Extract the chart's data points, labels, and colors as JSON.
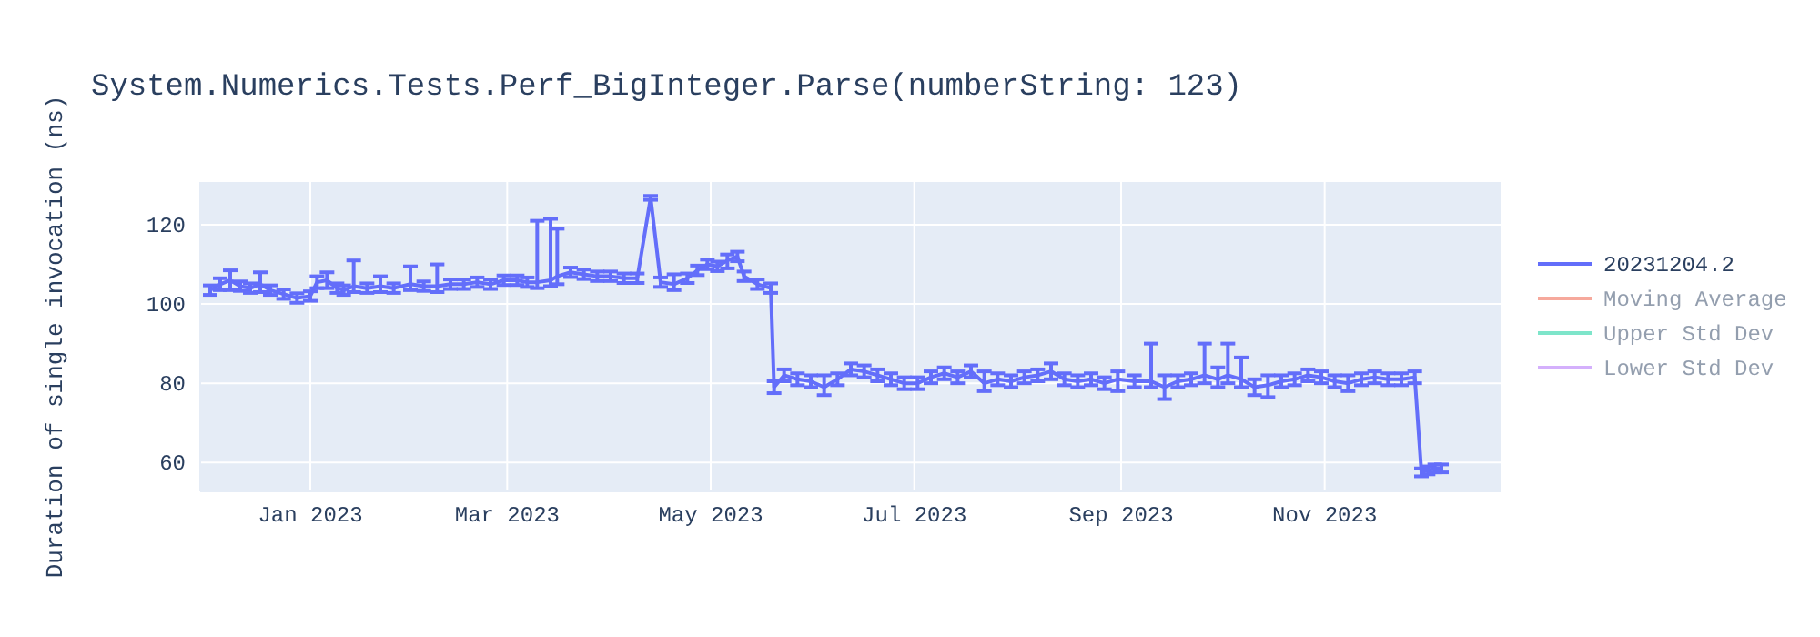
{
  "chart_data": {
    "type": "line",
    "title": "System.Numerics.Tests.Perf_BigInteger.Parse(numberString: 123)",
    "ylabel": "Duration of single invocation (ns)",
    "xlim": [
      "2022-11-29",
      "2023-12-24"
    ],
    "xticks": [
      {
        "value": "2023-01-01",
        "label": "Jan 2023"
      },
      {
        "value": "2023-03-01",
        "label": "Mar 2023"
      },
      {
        "value": "2023-05-01",
        "label": "May 2023"
      },
      {
        "value": "2023-07-01",
        "label": "Jul 2023"
      },
      {
        "value": "2023-09-01",
        "label": "Sep 2023"
      },
      {
        "value": "2023-11-01",
        "label": "Nov 2023"
      }
    ],
    "ylim": [
      52.7,
      130.8
    ],
    "yticks": [
      60,
      80,
      100,
      120
    ],
    "grid": true,
    "legend": "right",
    "marker": "none",
    "line_style": "solid",
    "series": [
      {
        "name": "20231204.2",
        "color": "#636efa",
        "x": [
          "2022-12-02",
          "2022-12-05",
          "2022-12-08",
          "2022-12-11",
          "2022-12-14",
          "2022-12-17",
          "2022-12-20",
          "2022-12-24",
          "2022-12-28",
          "2023-01-01",
          "2023-01-03",
          "2023-01-06",
          "2023-01-09",
          "2023-01-11",
          "2023-01-14",
          "2023-01-18",
          "2023-01-22",
          "2023-01-26",
          "2023-01-31",
          "2023-02-04",
          "2023-02-08",
          "2023-02-12",
          "2023-02-16",
          "2023-02-20",
          "2023-02-24",
          "2023-02-28",
          "2023-03-04",
          "2023-03-07",
          "2023-03-10",
          "2023-03-14",
          "2023-03-16",
          "2023-03-20",
          "2023-03-24",
          "2023-03-28",
          "2023-04-01",
          "2023-04-05",
          "2023-04-09",
          "2023-04-13",
          "2023-04-16",
          "2023-04-20",
          "2023-04-24",
          "2023-04-27",
          "2023-04-30",
          "2023-05-03",
          "2023-05-06",
          "2023-05-09",
          "2023-05-11",
          "2023-05-15",
          "2023-05-19",
          "2023-05-20",
          "2023-05-23",
          "2023-05-27",
          "2023-05-31",
          "2023-06-04",
          "2023-06-08",
          "2023-06-12",
          "2023-06-16",
          "2023-06-20",
          "2023-06-24",
          "2023-06-28",
          "2023-07-02",
          "2023-07-06",
          "2023-07-10",
          "2023-07-14",
          "2023-07-18",
          "2023-07-22",
          "2023-07-26",
          "2023-07-30",
          "2023-08-03",
          "2023-08-07",
          "2023-08-11",
          "2023-08-15",
          "2023-08-19",
          "2023-08-23",
          "2023-08-27",
          "2023-08-31",
          "2023-09-05",
          "2023-09-10",
          "2023-09-14",
          "2023-09-18",
          "2023-09-22",
          "2023-09-26",
          "2023-09-30",
          "2023-10-03",
          "2023-10-07",
          "2023-10-11",
          "2023-10-15",
          "2023-10-19",
          "2023-10-23",
          "2023-10-27",
          "2023-10-31",
          "2023-11-04",
          "2023-11-08",
          "2023-11-12",
          "2023-11-16",
          "2023-11-20",
          "2023-11-24",
          "2023-11-28",
          "2023-11-30",
          "2023-12-02",
          "2023-12-04",
          "2023-12-06"
        ],
        "values": [
          103.5,
          105,
          106,
          104.5,
          104,
          105,
          103.5,
          102.5,
          101.5,
          102,
          105.5,
          106,
          104,
          103.5,
          104.5,
          104,
          104.5,
          104,
          105,
          104.5,
          104.5,
          105,
          105,
          105.5,
          105,
          106,
          106,
          105.5,
          105.5,
          106,
          107,
          108,
          107.5,
          107,
          107,
          106.5,
          106.5,
          126.8,
          105.5,
          105,
          106.5,
          108.5,
          110,
          109.5,
          111,
          112,
          107,
          105,
          104,
          79,
          82,
          81,
          80.5,
          79,
          81,
          83.5,
          83,
          82,
          81,
          80,
          80,
          81.5,
          82.5,
          81.5,
          83,
          80,
          81,
          80.5,
          81.5,
          82,
          83,
          81,
          80.5,
          81,
          80,
          81,
          80.5,
          80.5,
          79,
          80.5,
          81,
          82,
          81,
          82,
          81,
          79,
          79.5,
          80.5,
          81,
          82,
          81.5,
          80.5,
          80,
          81,
          81.5,
          81,
          81,
          81.5,
          57.5,
          58,
          58.5,
          58.5
        ],
        "errors": [
          1.2,
          1.5,
          [
            103.5,
            108.5
          ],
          1.2,
          1.2,
          [
            103,
            108
          ],
          1.2,
          1.2,
          1.2,
          1.2,
          1.5,
          [
            104,
            108
          ],
          1.2,
          1.2,
          [
            103,
            111
          ],
          1.2,
          [
            103,
            107
          ],
          1.2,
          [
            103.5,
            109.5
          ],
          1.2,
          [
            103,
            110
          ],
          1.2,
          1.2,
          1.2,
          1.2,
          1.2,
          1.2,
          1.2,
          [
            104,
            121
          ],
          [
            104.5,
            121.5
          ],
          [
            105,
            119
          ],
          1.2,
          1.2,
          1.2,
          1.2,
          1.2,
          1.2,
          0.5,
          1.2,
          [
            103.5,
            107.5
          ],
          1.2,
          1.2,
          1.2,
          1.2,
          [
            109,
            112.5
          ],
          1.2,
          1.2,
          1.2,
          1.2,
          1.5,
          1.5,
          1.5,
          1.5,
          [
            77,
            82
          ],
          1.5,
          1.5,
          1.5,
          1.5,
          1.5,
          1.5,
          1.5,
          1.5,
          1.5,
          1.5,
          1.5,
          [
            78,
            83
          ],
          1.5,
          1.5,
          1.5,
          1.5,
          [
            81,
            85
          ],
          1.5,
          1.5,
          1.5,
          1.5,
          [
            78,
            83
          ],
          1.5,
          [
            79,
            90
          ],
          [
            76,
            82
          ],
          1.5,
          1.5,
          [
            80,
            90
          ],
          [
            79,
            84
          ],
          [
            80,
            90
          ],
          [
            79,
            86.5
          ],
          [
            77,
            81
          ],
          [
            76.5,
            82
          ],
          1.5,
          1.5,
          1.5,
          1.5,
          1.5,
          [
            78,
            82
          ],
          1.5,
          1.5,
          1.5,
          1.5,
          1.5,
          1,
          1,
          1,
          1
        ]
      },
      {
        "name": "Moving Average",
        "color": "#ef553b"
      },
      {
        "name": "Upper Std Dev",
        "color": "#00cc96"
      },
      {
        "name": "Lower Std Dev",
        "color": "#ab63fa"
      }
    ]
  }
}
